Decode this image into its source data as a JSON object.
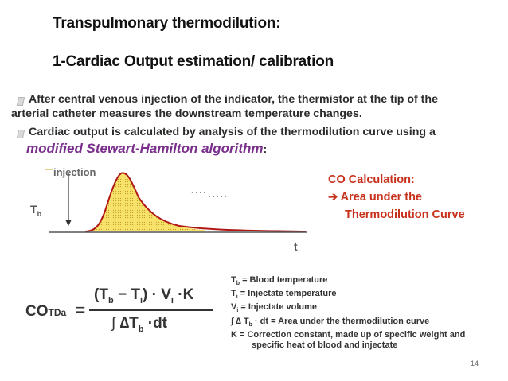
{
  "slide": {
    "title1": "Transpulmonary  thermodilution:",
    "title2": "1-Cardiac Output  estimation/ calibration",
    "bullet1_line1": "After central venous injection of the indicator, the thermistor at the tip of the",
    "bullet1_line2": "arterial catheter measures the downstream temperature changes.",
    "bullet2_line1": "Cardiac output is calculated by analysis of the thermodilution curve using a",
    "bullet2_emph": "modified Stewart-Hamilton algorithm",
    "bullet2_colon": ":",
    "page_number": "14"
  },
  "graph": {
    "injection_label": "injection",
    "tb_label": "T",
    "tb_sub": "b",
    "t_label": "t"
  },
  "co_calc": {
    "heading": "CO Calculation:",
    "arrow": "➔",
    "line1": "Area under the",
    "line2": "Thermodilution Curve"
  },
  "formula": {
    "lhs_main": "CO",
    "lhs_sub": "TDa",
    "equals": "=",
    "num_open": "(T",
    "num_b": "b",
    "num_minus": " − T",
    "num_i": "i",
    "num_close": ")",
    "dot1": "·",
    "num_v": "V",
    "num_vi": "i",
    "dot2": "·",
    "num_k": "K",
    "den_int": "∫",
    "den_delta": "∆T",
    "den_b": "b",
    "den_dot": "·",
    "den_dt": "dt"
  },
  "legend": [
    {
      "sym": "T",
      "sub": "b",
      "text": " = Blood temperature"
    },
    {
      "sym": "T",
      "sub": "i",
      "text": " = Injectate temperature"
    },
    {
      "sym": "V",
      "sub": "i",
      "text": " = Injectate volume"
    },
    {
      "sym": "∫ ∆ T",
      "sub": "b",
      "text": " · dt = Area under the thermodilution curve"
    },
    {
      "sym": "K",
      "sub": "",
      "text": " = Correction constant, made up of specific weight and"
    },
    {
      "sym": "",
      "sub": "",
      "text": "specific heat of blood and injectate"
    }
  ]
}
